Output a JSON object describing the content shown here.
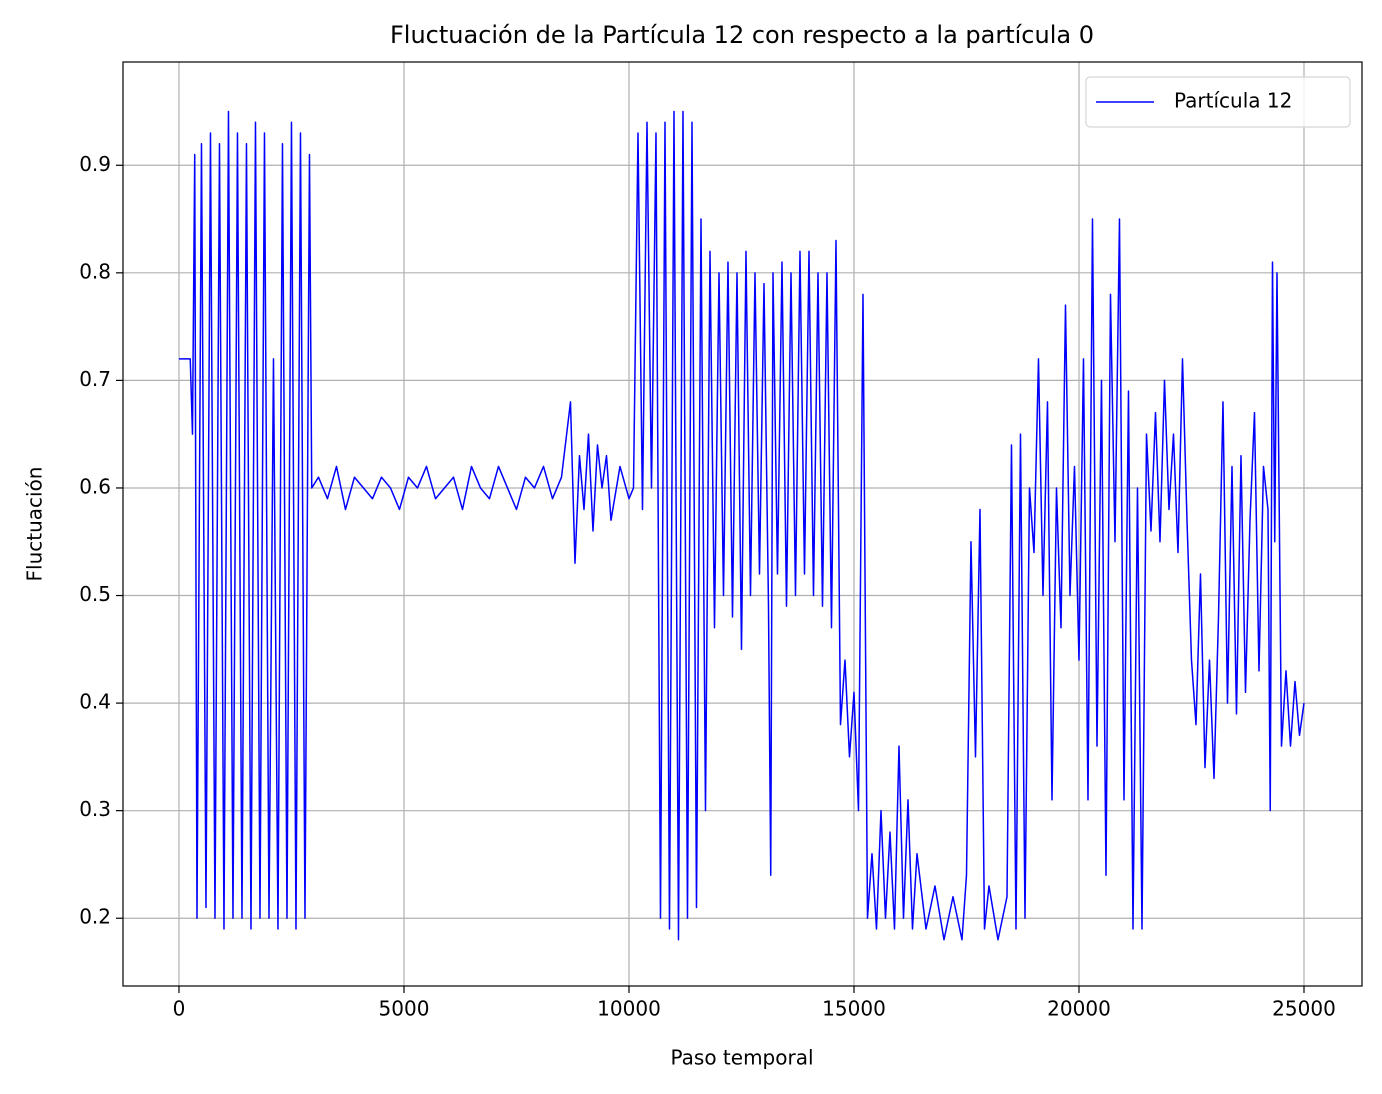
{
  "chart_data": {
    "type": "line",
    "title": "Fluctuación de la Partícula 12 con respecto a la partícula 0",
    "x_label": "Paso temporal",
    "y_label": "Fluctuación",
    "xlim": [
      -1244,
      26289
    ],
    "ylim": [
      0.137,
      0.996
    ],
    "xticks": [
      0,
      5000,
      10000,
      15000,
      20000,
      25000
    ],
    "yticks": [
      0.2,
      0.3,
      0.4,
      0.5,
      0.6,
      0.7,
      0.8,
      0.9
    ],
    "grid": true,
    "legend": "upper right",
    "x": [
      0,
      250,
      300,
      350,
      400,
      500,
      600,
      700,
      800,
      900,
      1000,
      1100,
      1200,
      1300,
      1400,
      1500,
      1600,
      1700,
      1800,
      1900,
      2000,
      2100,
      2200,
      2300,
      2400,
      2500,
      2600,
      2700,
      2800,
      2900,
      2950,
      3100,
      3300,
      3500,
      3700,
      3900,
      4100,
      4300,
      4500,
      4700,
      4900,
      5100,
      5300,
      5500,
      5700,
      5900,
      6100,
      6300,
      6500,
      6700,
      6900,
      7100,
      7300,
      7500,
      7700,
      7900,
      8100,
      8300,
      8500,
      8700,
      8800,
      8900,
      9000,
      9100,
      9200,
      9300,
      9400,
      9500,
      9600,
      9800,
      10000,
      10100,
      10200,
      10300,
      10400,
      10500,
      10600,
      10700,
      10800,
      10900,
      11000,
      11100,
      11200,
      11300,
      11400,
      11500,
      11600,
      11700,
      11800,
      11900,
      12000,
      12100,
      12200,
      12300,
      12400,
      12500,
      12600,
      12700,
      12800,
      12900,
      13000,
      13100,
      13150,
      13200,
      13300,
      13400,
      13500,
      13600,
      13700,
      13800,
      13900,
      14000,
      14100,
      14200,
      14300,
      14400,
      14500,
      14600,
      14700,
      14800,
      14900,
      15000,
      15100,
      15200,
      15300,
      15400,
      15500,
      15600,
      15700,
      15800,
      15900,
      16000,
      16100,
      16200,
      16300,
      16400,
      16600,
      16800,
      17000,
      17200,
      17400,
      17500,
      17600,
      17700,
      17800,
      17900,
      18000,
      18200,
      18400,
      18500,
      18600,
      18700,
      18800,
      18900,
      19000,
      19100,
      19200,
      19300,
      19400,
      19500,
      19600,
      19700,
      19800,
      19900,
      20000,
      20100,
      20200,
      20300,
      20400,
      20500,
      20600,
      20700,
      20800,
      20900,
      21000,
      21100,
      21200,
      21300,
      21400,
      21500,
      21600,
      21700,
      21800,
      21900,
      22000,
      22100,
      22200,
      22300,
      22400,
      22500,
      22600,
      22700,
      22800,
      22900,
      23000,
      23100,
      23200,
      23300,
      23400,
      23500,
      23600,
      23700,
      23800,
      23900,
      24000,
      24100,
      24200,
      24250,
      24300,
      24350,
      24400,
      24500,
      24600,
      24700,
      24800,
      24900,
      25000
    ],
    "series": [
      {
        "name": "Partícula 12",
        "color": "#0000ff",
        "values": [
          0.72,
          0.72,
          0.65,
          0.91,
          0.2,
          0.92,
          0.21,
          0.93,
          0.2,
          0.92,
          0.19,
          0.95,
          0.2,
          0.93,
          0.2,
          0.92,
          0.19,
          0.94,
          0.2,
          0.93,
          0.2,
          0.72,
          0.19,
          0.92,
          0.2,
          0.94,
          0.19,
          0.93,
          0.2,
          0.91,
          0.6,
          0.61,
          0.59,
          0.62,
          0.58,
          0.61,
          0.6,
          0.59,
          0.61,
          0.6,
          0.58,
          0.61,
          0.6,
          0.62,
          0.59,
          0.6,
          0.61,
          0.58,
          0.62,
          0.6,
          0.59,
          0.62,
          0.6,
          0.58,
          0.61,
          0.6,
          0.62,
          0.59,
          0.61,
          0.68,
          0.53,
          0.63,
          0.58,
          0.65,
          0.56,
          0.64,
          0.6,
          0.63,
          0.57,
          0.62,
          0.59,
          0.6,
          0.93,
          0.58,
          0.94,
          0.6,
          0.93,
          0.2,
          0.94,
          0.19,
          0.95,
          0.18,
          0.95,
          0.2,
          0.94,
          0.21,
          0.85,
          0.3,
          0.82,
          0.47,
          0.8,
          0.5,
          0.81,
          0.48,
          0.8,
          0.45,
          0.82,
          0.5,
          0.8,
          0.52,
          0.79,
          0.49,
          0.24,
          0.8,
          0.52,
          0.81,
          0.49,
          0.8,
          0.5,
          0.82,
          0.52,
          0.82,
          0.5,
          0.8,
          0.49,
          0.8,
          0.47,
          0.83,
          0.38,
          0.44,
          0.35,
          0.41,
          0.3,
          0.78,
          0.2,
          0.26,
          0.19,
          0.3,
          0.2,
          0.28,
          0.19,
          0.36,
          0.2,
          0.31,
          0.19,
          0.26,
          0.19,
          0.23,
          0.18,
          0.22,
          0.18,
          0.24,
          0.55,
          0.35,
          0.58,
          0.19,
          0.23,
          0.18,
          0.22,
          0.64,
          0.19,
          0.65,
          0.2,
          0.6,
          0.54,
          0.72,
          0.5,
          0.68,
          0.31,
          0.6,
          0.47,
          0.77,
          0.5,
          0.62,
          0.44,
          0.72,
          0.31,
          0.85,
          0.36,
          0.7,
          0.24,
          0.78,
          0.55,
          0.85,
          0.31,
          0.69,
          0.19,
          0.6,
          0.19,
          0.65,
          0.56,
          0.67,
          0.55,
          0.7,
          0.58,
          0.65,
          0.54,
          0.72,
          0.57,
          0.44,
          0.38,
          0.52,
          0.34,
          0.44,
          0.33,
          0.48,
          0.68,
          0.4,
          0.62,
          0.39,
          0.63,
          0.41,
          0.57,
          0.67,
          0.43,
          0.62,
          0.58,
          0.3,
          0.81,
          0.55,
          0.8,
          0.36,
          0.43,
          0.36,
          0.42,
          0.37,
          0.4
        ]
      }
    ]
  }
}
